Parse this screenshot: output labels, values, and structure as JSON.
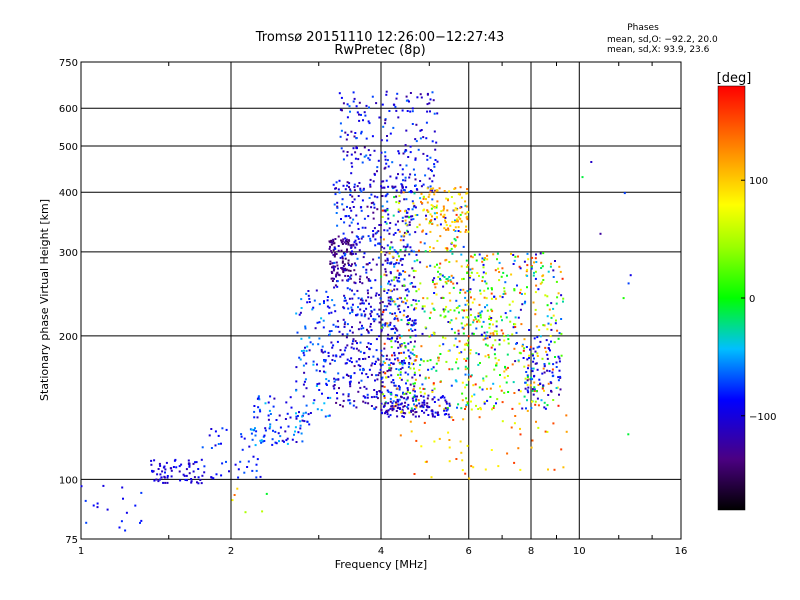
{
  "chart_data": {
    "type": "scatter",
    "title": "Tromsø 20151110 12:26:00−12:27:43",
    "subtitle": "RwPretec (8p)",
    "xlabel": "Frequency [MHz]",
    "ylabel": "Stationary phase Virtual Height [km]",
    "xscale": "log",
    "yscale": "log",
    "xlim": [
      1,
      16
    ],
    "ylim": [
      75,
      750
    ],
    "xticks": [
      1,
      2,
      4,
      6,
      8,
      10,
      16
    ],
    "xtick_labels": [
      "1",
      "2",
      "4",
      "6",
      "8",
      "10",
      "16"
    ],
    "yticks": [
      75,
      100,
      200,
      300,
      400,
      500,
      600,
      750
    ],
    "ytick_labels": [
      "75",
      "100",
      "200",
      "300",
      "400",
      "500",
      "600",
      "750"
    ],
    "grid": true,
    "phase_stats": {
      "title": "Phases",
      "line_o": "mean, sd,O: −92.2, 20.0",
      "line_x": "mean, sd,X:  93.9, 23.6"
    },
    "colorbar": {
      "label": "[deg]",
      "min": -180,
      "max": 180,
      "ticks": [
        100,
        0,
        -100
      ],
      "tick_labels": [
        "100",
        "0",
        "−100"
      ]
    },
    "clusters": [
      {
        "f": [
          1.0,
          1.35
        ],
        "h": [
          78,
          98
        ],
        "ph": [
          -110,
          -70
        ],
        "n": 18
      },
      {
        "f": [
          1.38,
          1.75
        ],
        "h": [
          98,
          110
        ],
        "ph": [
          -120,
          -80
        ],
        "n": 70
      },
      {
        "f": [
          1.75,
          2.3
        ],
        "h": [
          100,
          128
        ],
        "ph": [
          -110,
          -60
        ],
        "n": 45
      },
      {
        "f": [
          2.2,
          2.8
        ],
        "h": [
          118,
          150
        ],
        "ph": [
          -120,
          -40
        ],
        "n": 80
      },
      {
        "f": [
          2.7,
          3.2
        ],
        "h": [
          130,
          250
        ],
        "ph": [
          -120,
          -40
        ],
        "n": 120
      },
      {
        "f": [
          3.15,
          3.5
        ],
        "h": [
          260,
          320
        ],
        "ph": [
          -150,
          -120
        ],
        "n": 90
      },
      {
        "f": [
          3.2,
          4.7
        ],
        "h": [
          140,
          420
        ],
        "ph": [
          -140,
          -60
        ],
        "n": 700
      },
      {
        "f": [
          3.3,
          5.2
        ],
        "h": [
          400,
          650
        ],
        "ph": [
          -130,
          -60
        ],
        "n": 220
      },
      {
        "f": [
          4.0,
          6.0
        ],
        "h": [
          140,
          400
        ],
        "ph": [
          -120,
          170
        ],
        "n": 450
      },
      {
        "f": [
          4.0,
          5.5
        ],
        "h": [
          135,
          150
        ],
        "ph": [
          -140,
          -80
        ],
        "n": 120
      },
      {
        "f": [
          4.8,
          6.0
        ],
        "h": [
          330,
          410
        ],
        "ph": [
          80,
          140
        ],
        "n": 90
      },
      {
        "f": [
          5.9,
          9.3
        ],
        "h": [
          140,
          300
        ],
        "ph": [
          -120,
          170
        ],
        "n": 420
      },
      {
        "f": [
          7.8,
          9.2
        ],
        "h": [
          150,
          190
        ],
        "ph": [
          -130,
          -70
        ],
        "n": 60
      },
      {
        "f": [
          4.2,
          9.5
        ],
        "h": [
          100,
          140
        ],
        "ph": [
          60,
          160
        ],
        "n": 60
      },
      {
        "f": [
          2.0,
          2.5
        ],
        "h": [
          85,
          100
        ],
        "ph": [
          -40,
          170
        ],
        "n": 6
      },
      {
        "f": [
          10.0,
          12.8
        ],
        "h": [
          120,
          520
        ],
        "ph": [
          -130,
          20
        ],
        "n": 8
      }
    ]
  }
}
